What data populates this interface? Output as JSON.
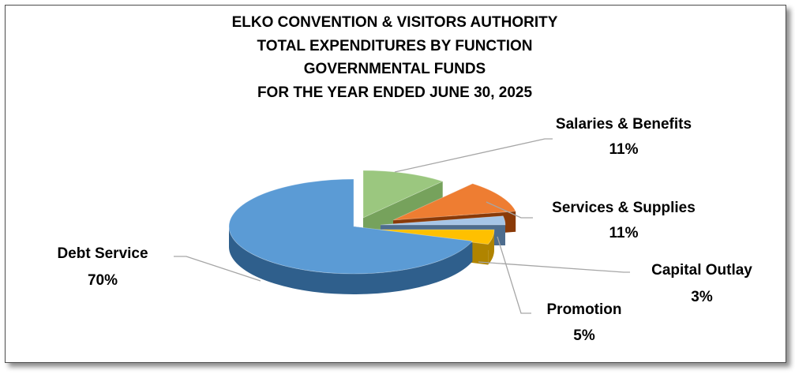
{
  "chart_data": {
    "type": "pie",
    "title": [
      "ELKO CONVENTION & VISITORS AUTHORITY",
      "TOTAL EXPENDITURES BY FUNCTION",
      "GOVERNMENTAL FUNDS",
      "FOR THE YEAR ENDED JUNE 30, 2025"
    ],
    "slices": [
      {
        "name": "Salaries & Benefits",
        "percent_label": "11%",
        "value": 11,
        "color": "#9BC77F",
        "side": "#76A25C"
      },
      {
        "name": "Services & Supplies",
        "percent_label": "11%",
        "value": 11,
        "color": "#EE7D32",
        "side": "#8A3A08"
      },
      {
        "name": "Capital Outlay",
        "percent_label": "3%",
        "value": 3,
        "color": "#A6C5E6",
        "side": "#4E6D8E"
      },
      {
        "name": "Promotion",
        "percent_label": "5%",
        "value": 5,
        "color": "#FFC000",
        "side": "#B08400"
      },
      {
        "name": "Debt Service",
        "percent_label": "70%",
        "value": 70,
        "color": "#5B9BD5",
        "side": "#2F5F8C"
      }
    ],
    "style": "3d-exploded"
  }
}
